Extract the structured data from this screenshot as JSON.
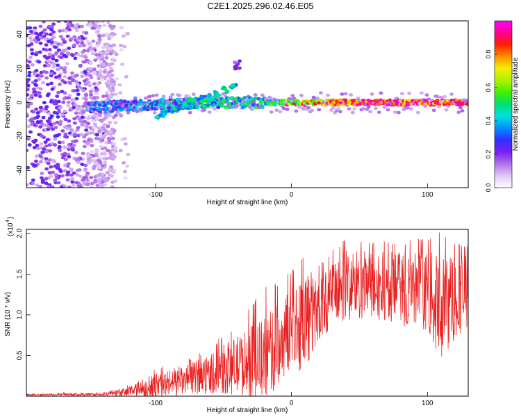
{
  "title": "C2E1.2025.296.02.46.E05",
  "chart_data": [
    {
      "type": "heatmap",
      "title": "C2E1.2025.296.02.46.E05",
      "xlabel": "Height of straight line (km)",
      "ylabel": "Frequency (Hz)",
      "xlim": [
        -195,
        130
      ],
      "ylim": [
        -50,
        48
      ],
      "xticks": [
        -100,
        0,
        100
      ],
      "yticks": [
        -40,
        -20,
        0,
        20,
        40
      ],
      "grid": false,
      "colorbar": {
        "label": "Normalized spectral amplitude",
        "range": [
          0,
          1
        ],
        "ticks": [
          "0.0",
          "0.2",
          "0.4",
          "0.6",
          "0.8"
        ],
        "colors": [
          "#ffffff",
          "#e0c8f4",
          "#b070e8",
          "#7a20f0",
          "#3030ff",
          "#0090ff",
          "#00e0e0",
          "#00e070",
          "#40f000",
          "#b0f000",
          "#f0f000",
          "#ff9000",
          "#ff2000",
          "#ff0090",
          "#ff00ff"
        ]
      },
      "features": {
        "band_center_hz": 0,
        "band_strong_from_km": -20,
        "band_visible_from_km": -150,
        "noise_region_km": [
          -195,
          -130
        ],
        "dispersed_branch": {
          "from_km": -100,
          "to_km": -40,
          "freq_hz": [
            -8,
            10
          ]
        },
        "isolated_patch": {
          "km": -40,
          "freq_hz": 22
        }
      }
    },
    {
      "type": "line",
      "xlabel": "Height of straight line (km)",
      "ylabel": "SNR (10 * v/v)",
      "scale_label": "(x10",
      "scale_exponent": "4",
      "xlim": [
        -195,
        130
      ],
      "ylim": [
        0,
        2.05
      ],
      "xticks": [
        -100,
        0,
        100
      ],
      "yticks": [
        "0.5",
        "1.0",
        "1.5",
        "2.0"
      ],
      "line_color": "#e82020",
      "grid": false,
      "series": [
        {
          "name": "SNR",
          "x": [
            -195,
            -140,
            -120,
            -100,
            -80,
            -60,
            -40,
            -20,
            -10,
            0,
            10,
            20,
            30,
            40,
            60,
            80,
            100,
            110,
            120,
            130
          ],
          "y": [
            0.02,
            0.02,
            0.05,
            0.13,
            0.18,
            0.28,
            0.38,
            0.45,
            0.62,
            0.85,
            0.95,
            1.05,
            1.25,
            1.38,
            1.35,
            1.32,
            1.3,
            1.05,
            1.25,
            1.3
          ],
          "envelope_max": [
            0.02,
            0.04,
            0.14,
            0.35,
            0.42,
            0.62,
            0.9,
            1.35,
            1.4,
            1.55,
            1.78,
            1.62,
            1.8,
            1.94,
            1.92,
            1.9,
            1.95,
            2.05,
            1.9,
            1.85
          ],
          "envelope_min": [
            0.0,
            0.0,
            0.0,
            0.01,
            0.03,
            0.06,
            0.1,
            0.18,
            0.25,
            0.45,
            0.28,
            0.72,
            0.95,
            0.9,
            0.95,
            0.9,
            0.85,
            0.6,
            0.65,
            0.85
          ]
        }
      ]
    }
  ]
}
